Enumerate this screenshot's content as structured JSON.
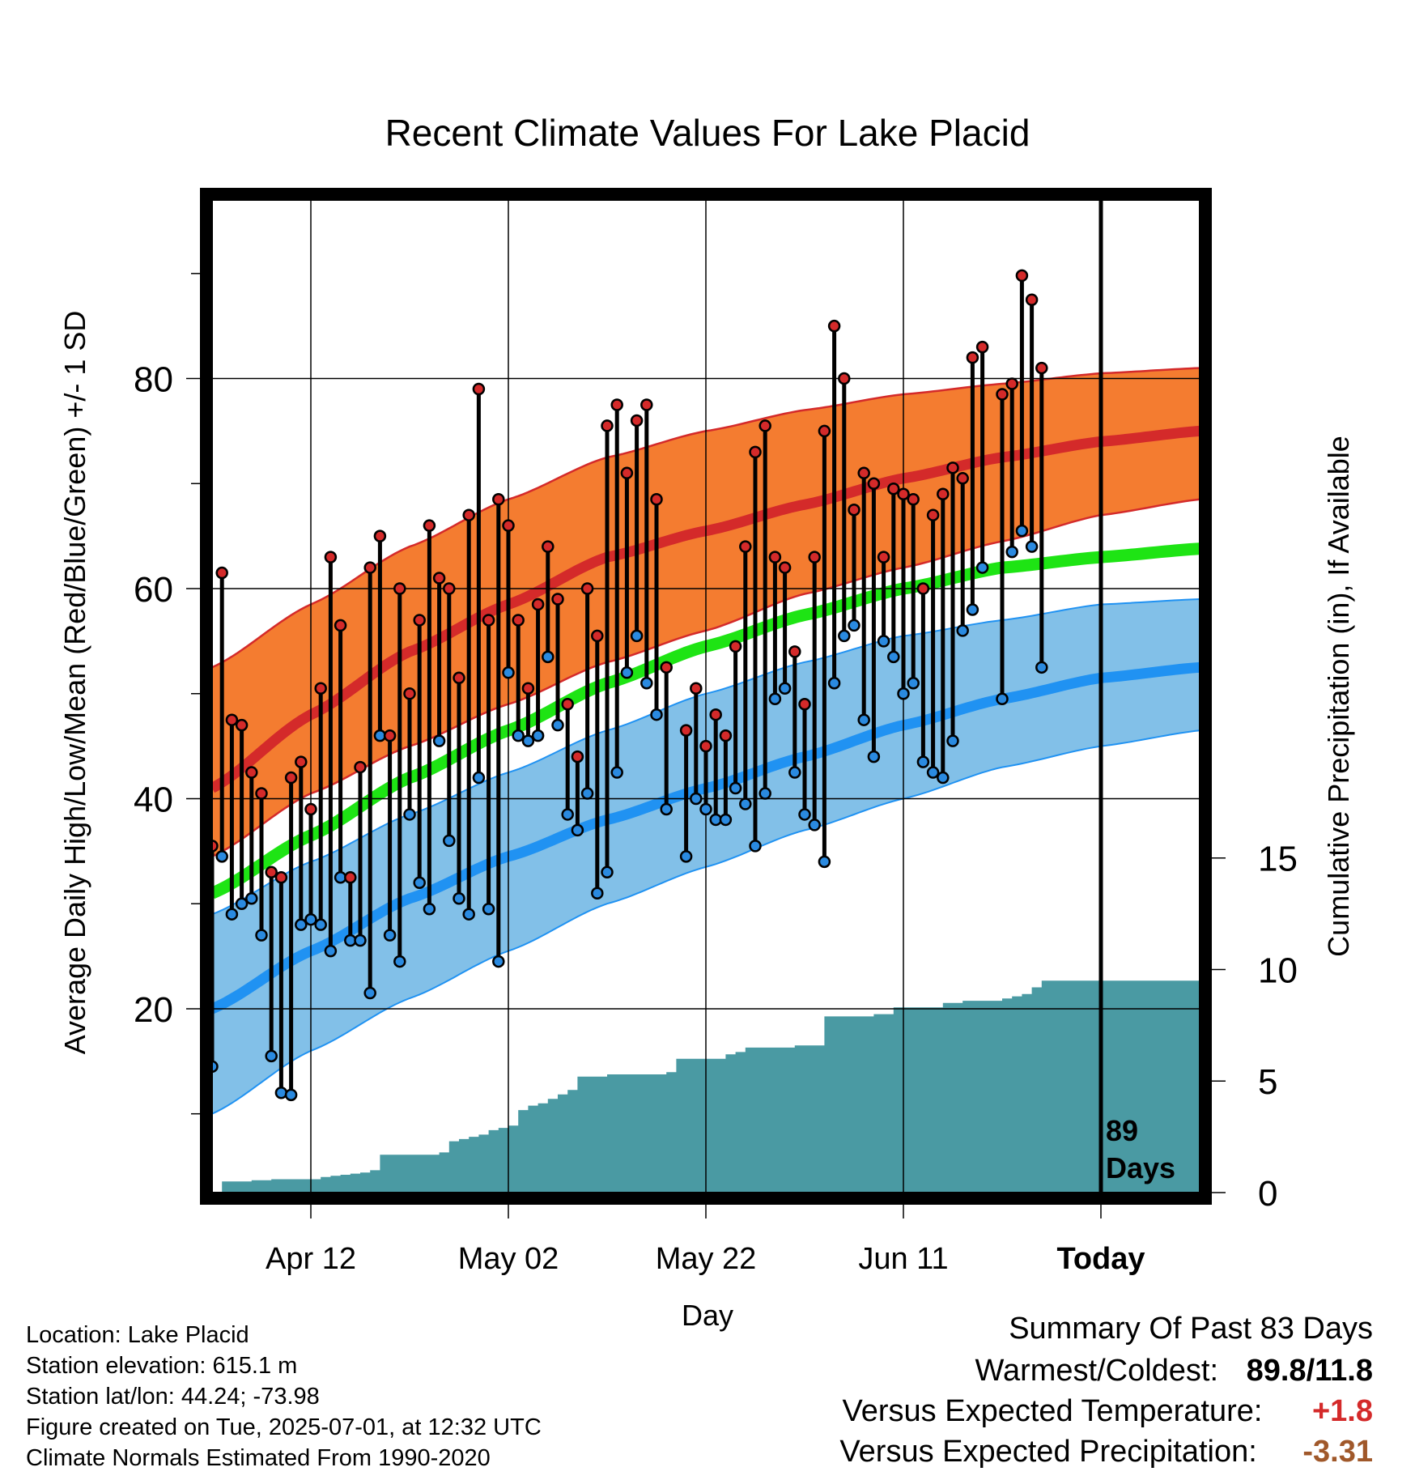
{
  "chart_data": {
    "type": "line",
    "title": "Recent Climate Values For Lake Placid",
    "xlabel": "Day",
    "ylabel": "Average Daily High/Low/Mean (Red/Blue/Green) +/- 1 SD",
    "y2label": "Cumulative Precipitation (in), If Available",
    "x_ticks": [
      {
        "day": 10,
        "label": "Apr 12"
      },
      {
        "day": 30,
        "label": "May 02"
      },
      {
        "day": 50,
        "label": "May 22"
      },
      {
        "day": 70,
        "label": "Jun 11"
      },
      {
        "day": 90,
        "label": "Today"
      }
    ],
    "x_range_days": [
      0,
      100
    ],
    "today_day": 90,
    "today_annotation": "89\nDays",
    "ylim": [
      2.5,
      97
    ],
    "y_ticks": [
      20,
      40,
      60,
      80
    ],
    "y_minor_ticks": [
      10,
      30,
      50,
      70,
      90
    ],
    "y2lim": [
      0,
      44.5
    ],
    "y2_ticks": [
      0,
      5,
      10,
      15
    ],
    "grid": true,
    "colors": {
      "high_band": "#f47c30",
      "high_line": "#d42a2a",
      "low_band": "#82c0e8",
      "low_line": "#2092f2",
      "mean_line": "#1ee414",
      "precip": "#4a9aa3",
      "high_marker": "#d42a2a",
      "low_marker": "#2a8ae0"
    },
    "normals": {
      "days": [
        0,
        10,
        20,
        30,
        40,
        50,
        60,
        70,
        80,
        90,
        100
      ],
      "high_mean": [
        41,
        48,
        54,
        58.5,
        63,
        65.5,
        68,
        70.5,
        72.5,
        74,
        75
      ],
      "high_upper": [
        52.5,
        58.5,
        64,
        68.5,
        72.5,
        75,
        77,
        78.5,
        79.5,
        80.5,
        81
      ],
      "high_lower": [
        34.5,
        40.5,
        45,
        49,
        53,
        56,
        59.5,
        62,
        64.5,
        67,
        68.5
      ],
      "low_mean": [
        20,
        25.5,
        30.5,
        34.5,
        38,
        41,
        44,
        47,
        49.5,
        51.5,
        52.5
      ],
      "low_upper": [
        29,
        34,
        38.5,
        42.5,
        46.5,
        50,
        53,
        55.5,
        57,
        58.5,
        59
      ],
      "low_lower": [
        10,
        16,
        21,
        25.5,
        30,
        33.5,
        37,
        40,
        43,
        45,
        46.5
      ],
      "mean_mean": [
        31,
        36.5,
        42,
        46.5,
        51,
        54.5,
        57.5,
        60,
        62,
        63,
        63.8
      ]
    },
    "series": [
      {
        "name": "High",
        "x": [
          0,
          1,
          2,
          3,
          4,
          5,
          6,
          7,
          8,
          9,
          10,
          11,
          12,
          13,
          14,
          15,
          16,
          17,
          18,
          19,
          20,
          21,
          22,
          23,
          24,
          25,
          26,
          27,
          28,
          29,
          30,
          31,
          32,
          33,
          34,
          35,
          36,
          37,
          38,
          39,
          40,
          41,
          42,
          43,
          44,
          45,
          46,
          47,
          48,
          49,
          50,
          51,
          52,
          53,
          54,
          55,
          56,
          57,
          58,
          59,
          60,
          61,
          62,
          63,
          64,
          65,
          66,
          67,
          68,
          69,
          70,
          71,
          72,
          73,
          74,
          75,
          76,
          77,
          78,
          79,
          80,
          81,
          82,
          83,
          84
        ],
        "values": [
          35.5,
          61.5,
          47.5,
          47,
          42.5,
          40.5,
          33,
          32.5,
          42,
          43.5,
          39,
          50.5,
          63,
          56.5,
          32.5,
          43,
          62,
          65,
          46,
          60,
          50,
          57,
          66,
          61,
          60,
          51.5,
          67,
          79,
          57,
          68.5,
          66,
          57,
          50.5,
          58.5,
          64,
          59,
          49,
          44,
          60,
          55.5,
          75.5,
          77.5,
          71,
          76,
          77.5,
          68.5,
          52.5,
          null,
          46.5,
          50.5,
          45,
          48,
          46,
          54.5,
          64,
          73,
          75.5,
          63,
          62,
          54,
          49,
          63,
          75,
          85,
          80,
          67.5,
          71,
          70,
          63,
          69.5,
          69,
          68.5,
          60,
          67,
          69,
          71.5,
          70.5,
          82,
          83,
          null,
          78.5,
          79.5,
          89.8,
          87.5,
          81
        ]
      },
      {
        "name": "Low",
        "x": [
          0,
          1,
          2,
          3,
          4,
          5,
          6,
          7,
          8,
          9,
          10,
          11,
          12,
          13,
          14,
          15,
          16,
          17,
          18,
          19,
          20,
          21,
          22,
          23,
          24,
          25,
          26,
          27,
          28,
          29,
          30,
          31,
          32,
          33,
          34,
          35,
          36,
          37,
          38,
          39,
          40,
          41,
          42,
          43,
          44,
          45,
          46,
          47,
          48,
          49,
          50,
          51,
          52,
          53,
          54,
          55,
          56,
          57,
          58,
          59,
          60,
          61,
          62,
          63,
          64,
          65,
          66,
          67,
          68,
          69,
          70,
          71,
          72,
          73,
          74,
          75,
          76,
          77,
          78,
          79,
          80,
          81,
          82,
          83,
          84
        ],
        "values": [
          14.5,
          34.5,
          29,
          30,
          30.5,
          27,
          15.5,
          12,
          11.8,
          28,
          28.5,
          28,
          25.5,
          32.5,
          26.5,
          26.5,
          21.5,
          46,
          27,
          24.5,
          38.5,
          32,
          29.5,
          45.5,
          36,
          30.5,
          29,
          42,
          29.5,
          24.5,
          52,
          46,
          45.5,
          46,
          53.5,
          47,
          38.5,
          37,
          40.5,
          31,
          33,
          42.5,
          52,
          55.5,
          51,
          48,
          39,
          null,
          34.5,
          40,
          39,
          38,
          38,
          41,
          39.5,
          35.5,
          40.5,
          49.5,
          50.5,
          42.5,
          38.5,
          37.5,
          34,
          51,
          55.5,
          56.5,
          47.5,
          44,
          55,
          53.5,
          50,
          51,
          43.5,
          42.5,
          42,
          45.5,
          56,
          58,
          62,
          null,
          49.5,
          63.5,
          65.5,
          64,
          52.5
        ]
      }
    ],
    "precip_cumulative": {
      "x": [
        0,
        1,
        2,
        3,
        4,
        5,
        6,
        7,
        8,
        9,
        10,
        11,
        12,
        13,
        14,
        15,
        16,
        17,
        18,
        19,
        20,
        21,
        22,
        23,
        24,
        25,
        26,
        27,
        28,
        29,
        30,
        31,
        32,
        33,
        34,
        35,
        36,
        37,
        38,
        39,
        40,
        41,
        42,
        43,
        44,
        45,
        46,
        47,
        48,
        49,
        50,
        51,
        52,
        53,
        54,
        55,
        56,
        57,
        58,
        59,
        60,
        61,
        62,
        63,
        64,
        65,
        66,
        67,
        68,
        69,
        70,
        71,
        72,
        73,
        74,
        75,
        76,
        77,
        78,
        79,
        80,
        81,
        82,
        83,
        84,
        85,
        86,
        87,
        88,
        89
      ],
      "values": [
        0,
        0.5,
        0.5,
        0.5,
        0.55,
        0.55,
        0.6,
        0.6,
        0.6,
        0.6,
        0.6,
        0.7,
        0.75,
        0.8,
        0.85,
        0.9,
        1.0,
        1.7,
        1.7,
        1.7,
        1.7,
        1.7,
        1.7,
        1.8,
        2.3,
        2.4,
        2.5,
        2.6,
        2.8,
        2.9,
        3.0,
        3.7,
        3.9,
        4.0,
        4.2,
        4.4,
        4.6,
        5.2,
        5.2,
        5.2,
        5.3,
        5.3,
        5.3,
        5.3,
        5.3,
        5.3,
        5.4,
        6.0,
        6.0,
        6.0,
        6.0,
        6.0,
        6.2,
        6.3,
        6.5,
        6.5,
        6.5,
        6.5,
        6.5,
        6.6,
        6.6,
        6.6,
        7.9,
        7.9,
        7.9,
        7.9,
        7.9,
        8.0,
        8.0,
        8.3,
        8.3,
        8.3,
        8.3,
        8.3,
        8.5,
        8.5,
        8.6,
        8.6,
        8.6,
        8.6,
        8.7,
        8.8,
        8.9,
        9.2,
        9.5,
        9.5,
        9.5,
        9.5,
        9.5,
        9.5
      ]
    },
    "legend": "none"
  },
  "metadata_text": {
    "location": "Location: Lake Placid",
    "elevation": "Station elevation: 615.1 m",
    "latlon": "Station lat/lon: 44.24; -73.98",
    "created": "Figure created on Tue, 2025-07-01, at 12:32 UTC",
    "normals": "Climate Normals Estimated From 1990-2020"
  },
  "summary": {
    "title": "Summary Of Past 83 Days",
    "warmest_coldest_label": "Warmest/Coldest:",
    "warmest_coldest_value": "89.8/11.8",
    "temp_label": "Versus Expected Temperature:",
    "temp_value": "+1.8",
    "temp_color": "#d42a2a",
    "precip_label": "Versus Expected Precipitation:",
    "precip_value": "-3.31",
    "precip_color": "#a0582a"
  }
}
